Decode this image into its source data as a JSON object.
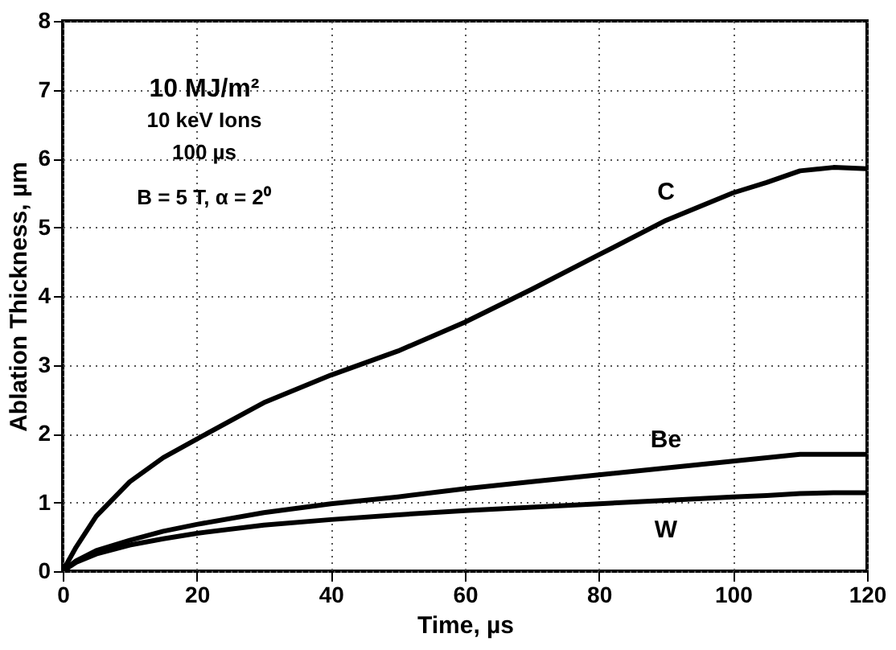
{
  "chart_data": {
    "type": "line",
    "xlabel": "Time, µs",
    "ylabel": "Ablation Thickness, µm",
    "xlim": [
      0,
      120
    ],
    "xticks": [
      0,
      20,
      40,
      60,
      80,
      100,
      120
    ],
    "ylim": [
      0,
      8
    ],
    "yticks": [
      0,
      1,
      2,
      3,
      4,
      5,
      6,
      7,
      8
    ],
    "grid": true,
    "legend": false,
    "marker": "none",
    "line_style": "solid",
    "annotations": [
      "10 MJ/m²",
      "10 keV Ions",
      "100 µs",
      "B = 5 T, α = 2⁰"
    ],
    "x": [
      0,
      2,
      5,
      10,
      15,
      20,
      30,
      40,
      50,
      60,
      70,
      80,
      90,
      100,
      105,
      110,
      115,
      120
    ],
    "series": [
      {
        "name": "C",
        "color": "#000000",
        "values": [
          0,
          0.35,
          0.8,
          1.3,
          1.65,
          1.92,
          2.45,
          2.85,
          3.2,
          3.62,
          4.1,
          4.6,
          5.1,
          5.5,
          5.65,
          5.82,
          5.87,
          5.85
        ]
      },
      {
        "name": "Be",
        "color": "#000000",
        "values": [
          0,
          0.15,
          0.3,
          0.45,
          0.58,
          0.68,
          0.85,
          0.98,
          1.08,
          1.2,
          1.3,
          1.4,
          1.5,
          1.6,
          1.65,
          1.7,
          1.7,
          1.7
        ]
      },
      {
        "name": "W",
        "color": "#000000",
        "values": [
          0,
          0.13,
          0.25,
          0.38,
          0.47,
          0.55,
          0.67,
          0.75,
          0.82,
          0.88,
          0.93,
          0.98,
          1.03,
          1.08,
          1.1,
          1.13,
          1.14,
          1.14
        ]
      }
    ]
  }
}
